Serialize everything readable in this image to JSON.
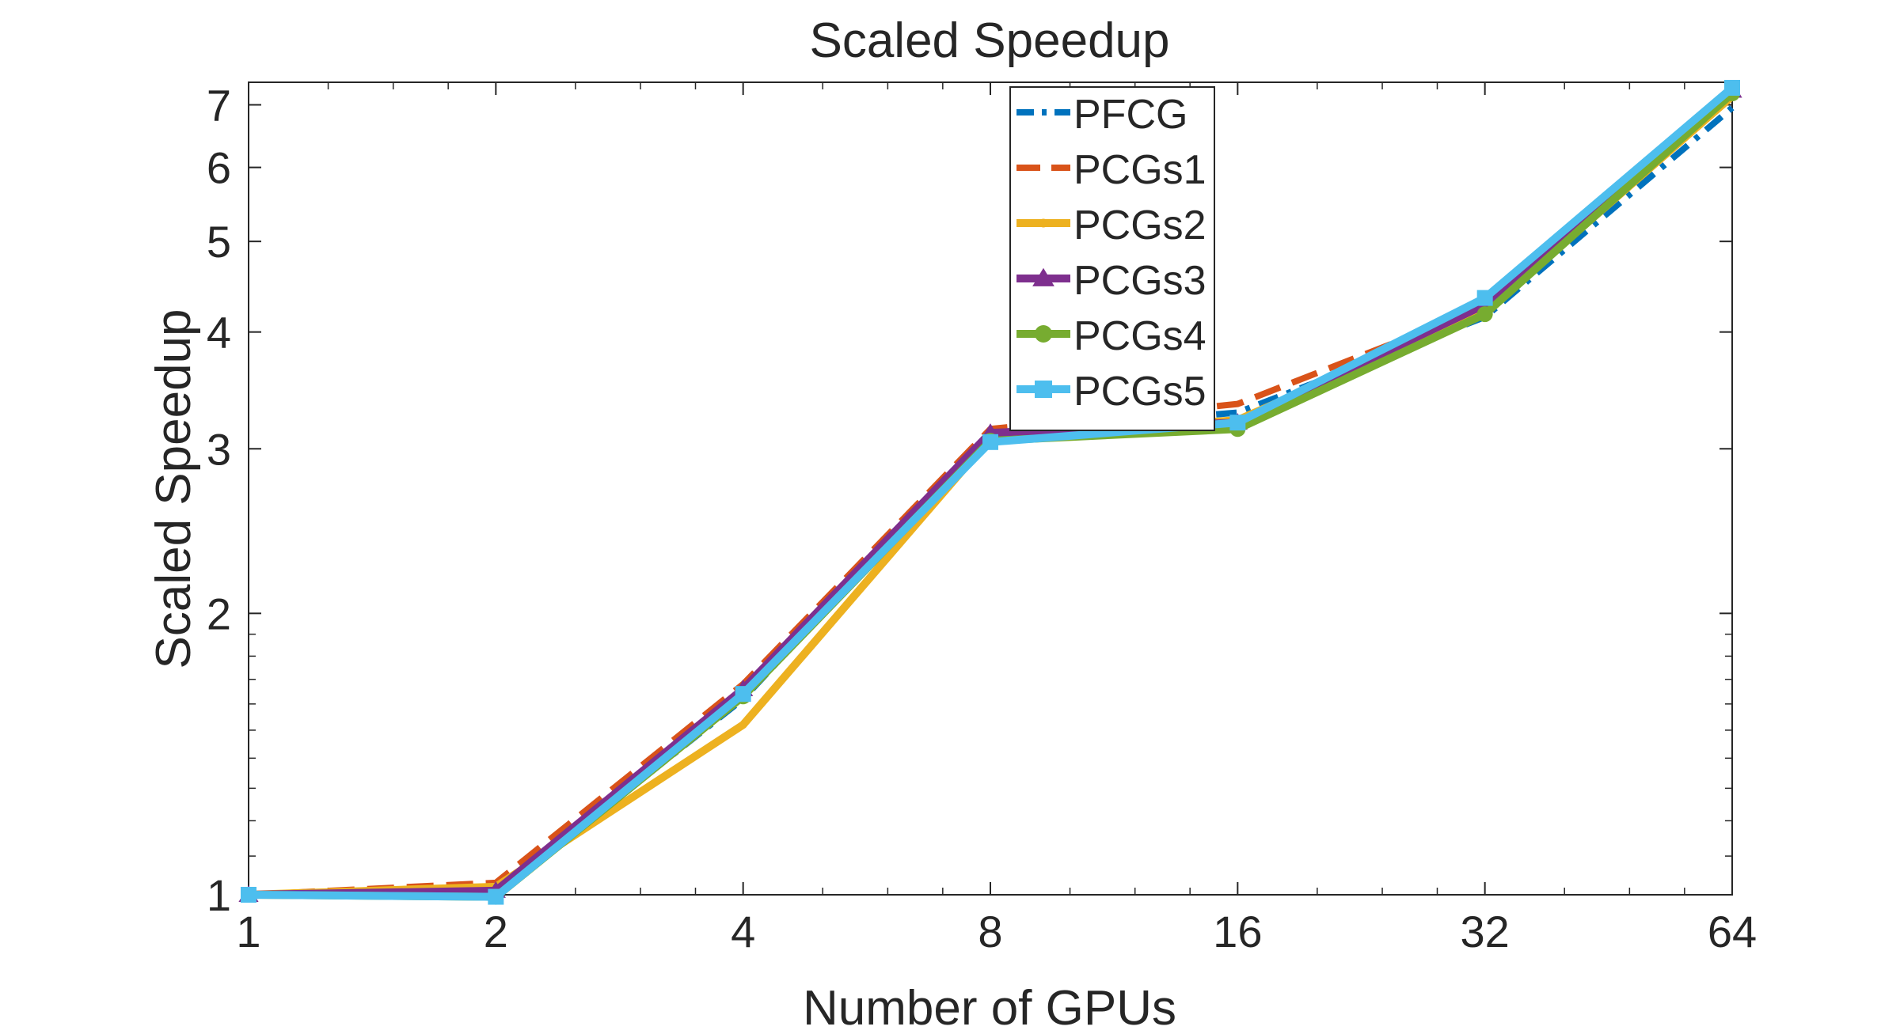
{
  "chart_data": {
    "type": "line",
    "title": "Scaled Speedup",
    "xlabel": "Number of GPUs",
    "ylabel": "Scaled Speedup",
    "xscale": "log2",
    "yscale": "log",
    "x": [
      1,
      2,
      4,
      8,
      16,
      32,
      64
    ],
    "xticks": [
      "1",
      "2",
      "4",
      "8",
      "16",
      "32",
      "64"
    ],
    "yticks": [
      "1",
      "2",
      "3",
      "4",
      "5",
      "6",
      "7"
    ],
    "ylim": [
      1,
      7.4
    ],
    "legend_position": "top-center",
    "series": [
      {
        "name": "PFCG",
        "color": "#0072BD",
        "dash": "dashdot",
        "marker": "none",
        "values": [
          1.0,
          1.0,
          1.62,
          3.12,
          3.28,
          4.15,
          6.95
        ]
      },
      {
        "name": "PCGs1",
        "color": "#D95319",
        "dash": "dashed",
        "marker": "none",
        "values": [
          1.0,
          1.03,
          1.68,
          3.15,
          3.35,
          4.25,
          7.2
        ]
      },
      {
        "name": "PCGs2",
        "color": "#EDB120",
        "dash": "solid",
        "marker": "dot",
        "values": [
          1.0,
          1.02,
          1.52,
          3.08,
          3.22,
          4.2,
          7.15
        ]
      },
      {
        "name": "PCGs3",
        "color": "#7E2F8E",
        "dash": "solid",
        "marker": "triangle",
        "values": [
          1.0,
          1.01,
          1.66,
          3.12,
          3.2,
          4.28,
          7.25
        ]
      },
      {
        "name": "PCGs4",
        "color": "#77AC30",
        "dash": "solid",
        "marker": "circle",
        "values": [
          1.0,
          0.995,
          1.63,
          3.06,
          3.15,
          4.18,
          7.2
        ]
      },
      {
        "name": "PCGs5",
        "color": "#4DBEEE",
        "dash": "solid",
        "marker": "square",
        "values": [
          1.0,
          0.995,
          1.64,
          3.05,
          3.2,
          4.35,
          7.3
        ]
      }
    ]
  }
}
